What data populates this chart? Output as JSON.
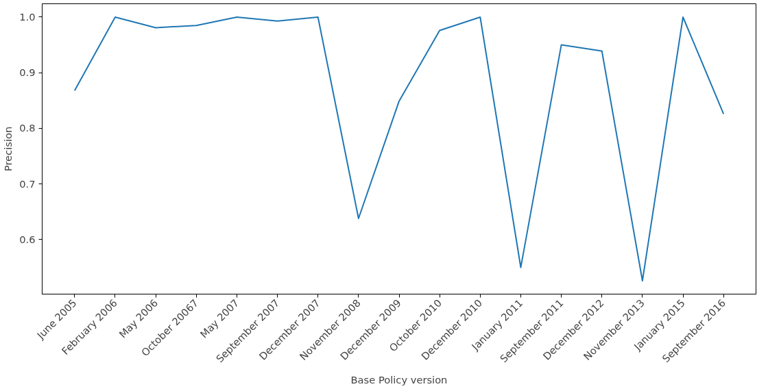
{
  "chart_data": {
    "type": "line",
    "xlabel": "Base Policy version",
    "ylabel": "Precision",
    "categories": [
      "June 2005",
      "February 2006",
      "May 2006",
      "October 20067",
      "May 2007",
      "September 2007",
      "December 2007",
      "November 2008",
      "December 2009",
      "October 2010",
      "December 2010",
      "January 2011",
      "September 2011",
      "December 2012",
      "November 2013",
      "January 2015",
      "September 2016"
    ],
    "series": [
      {
        "color": "#1f77b4",
        "values": [
          0.868,
          1.0,
          0.981,
          0.985,
          1.0,
          0.993,
          1.0,
          0.638,
          0.849,
          0.976,
          1.0,
          0.55,
          0.95,
          0.939,
          0.526,
          1.0,
          0.826
        ]
      }
    ],
    "ylim": [
      0.502,
      1.024
    ],
    "yticks": [
      0.6,
      0.7,
      0.8,
      0.9,
      {
        "value": 1,
        "label": "1.0"
      }
    ],
    "grid": false,
    "marker": "none",
    "line_style": "solid"
  }
}
